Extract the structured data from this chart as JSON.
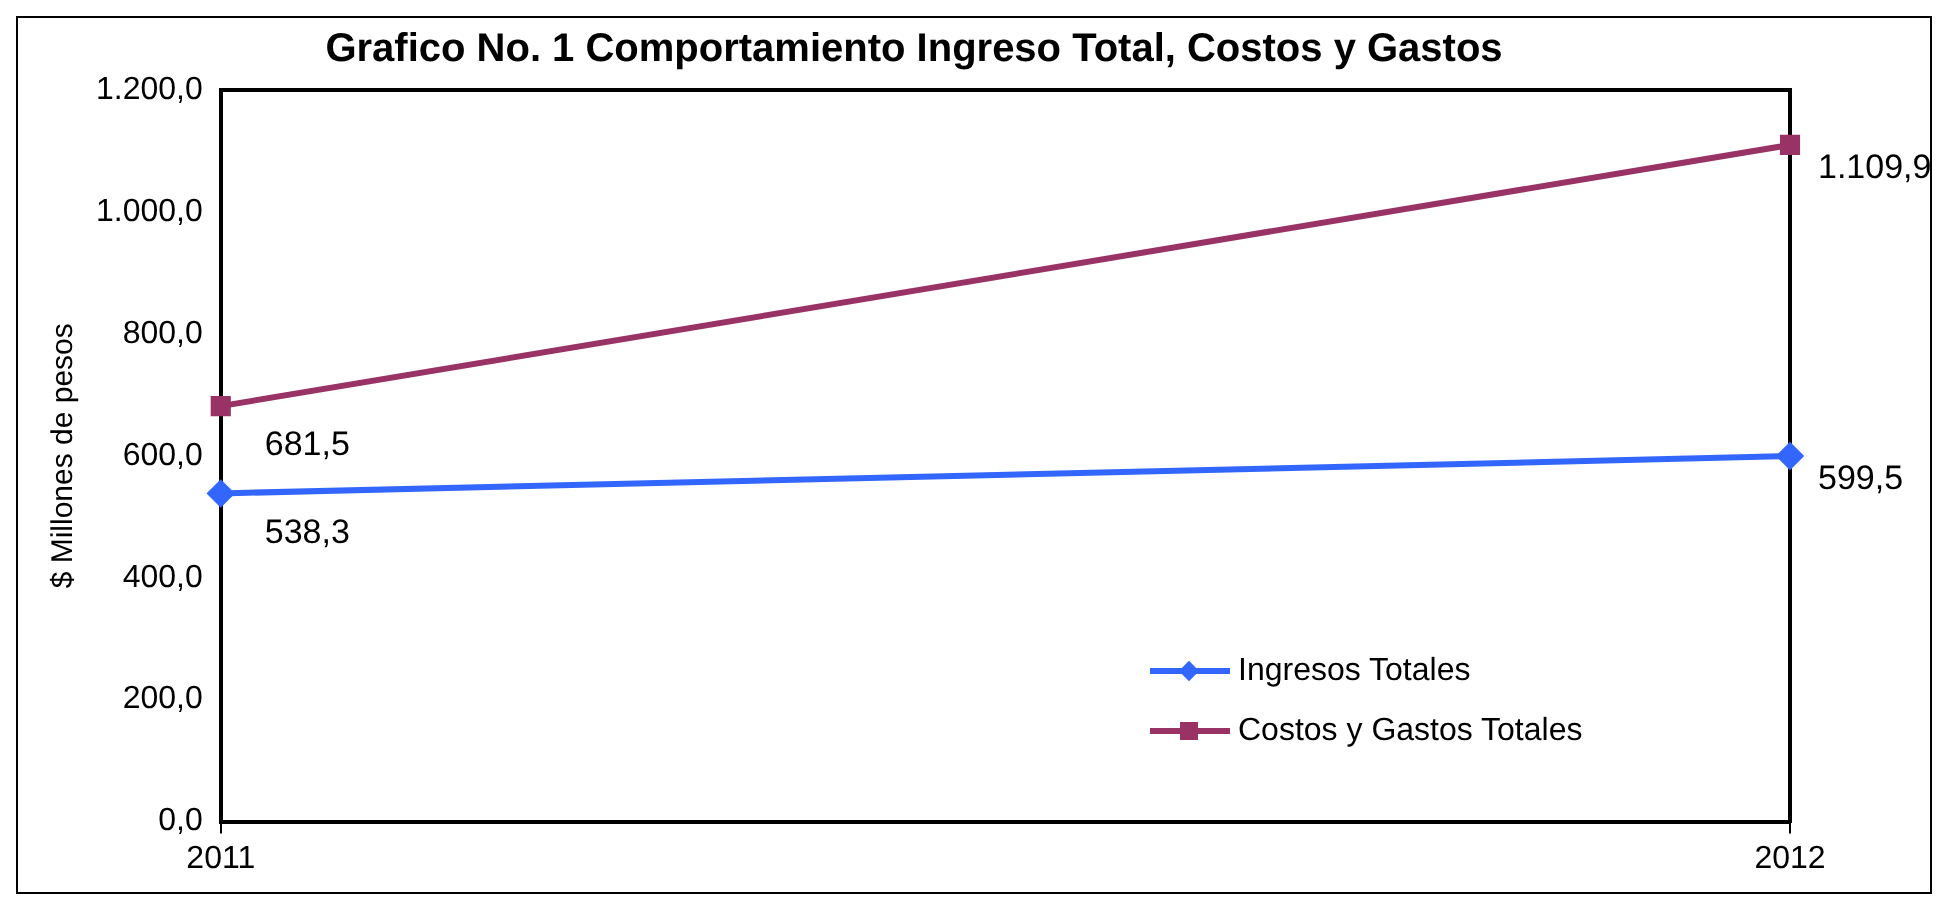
{
  "chart_data": {
    "type": "line",
    "title": "Grafico No. 1 Comportamiento Ingreso Total, Costos y Gastos",
    "ylabel": "$ Millones de pesos",
    "categories": [
      "2011",
      "2012"
    ],
    "series": [
      {
        "name": "Ingresos Totales",
        "color": "#3366ff",
        "values": [
          538.3,
          599.5
        ],
        "value_labels": [
          "538,3",
          "599,5"
        ],
        "marker": "diamond"
      },
      {
        "name": "Costos y Gastos Totales",
        "color": "#993366",
        "values": [
          681.5,
          1109.9
        ],
        "value_labels": [
          "681,5",
          "1.109,9"
        ],
        "marker": "square"
      }
    ],
    "ylim": [
      0,
      1200
    ],
    "yticks": [
      {
        "value": 0,
        "label": "0,0"
      },
      {
        "value": 200,
        "label": "200,0"
      },
      {
        "value": 400,
        "label": "400,0"
      },
      {
        "value": 600,
        "label": "600,0"
      },
      {
        "value": 800,
        "label": "800,0"
      },
      {
        "value": 1000,
        "label": "1.000,0"
      },
      {
        "value": 1200,
        "label": "1.200,0"
      }
    ],
    "legend": "bottom right",
    "grid": "x",
    "line_style": "solid"
  }
}
